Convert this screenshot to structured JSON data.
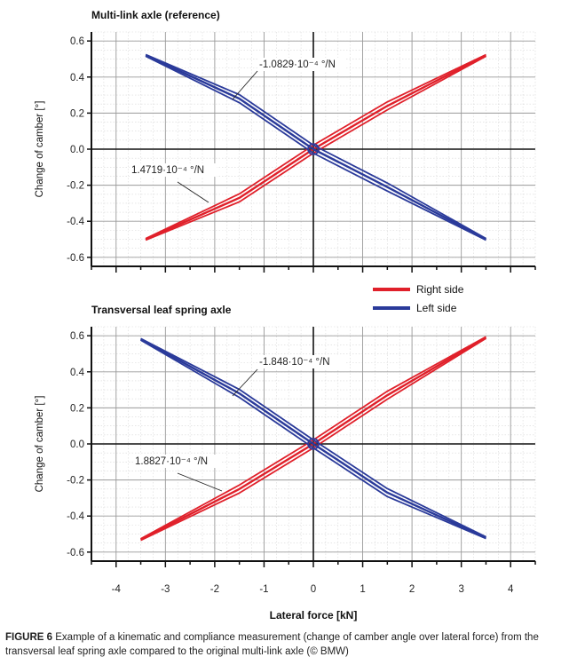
{
  "caption": {
    "label": "FIGURE 6",
    "text": "Example of a kinematic and compliance measurement (change of camber angle over lateral force) from the transversal leaf spring axle compared to the original multi-link axle (© BMW)"
  },
  "legend": {
    "items": [
      {
        "name": "Right side",
        "color": "#e0202a"
      },
      {
        "name": "Left side",
        "color": "#2a3a9a"
      }
    ]
  },
  "shared_x_axis": {
    "label": "Lateral force [kN]",
    "ticks": [
      "-4",
      "-3",
      "-2",
      "-1",
      "0",
      "1",
      "2",
      "3",
      "4"
    ]
  },
  "chart_data": [
    {
      "type": "line",
      "title": "Multi-link axle (reference)",
      "ylabel": "Change of camber [°]",
      "xlabel": "Lateral force [kN]",
      "xlim": [
        -4.5,
        4.5
      ],
      "ylim": [
        -0.65,
        0.65
      ],
      "yticks": [
        "0.6",
        "0.4",
        "0.2",
        "0.0",
        "-0.2",
        "-0.4",
        "-0.6"
      ],
      "grid": true,
      "annotations": [
        "-1.0829·10⁻⁴ °/N",
        "1.4719·10⁻⁴ °/N"
      ],
      "series": [
        {
          "name": "Right side",
          "color": "#e0202a",
          "x": [
            -3.4,
            -1.5,
            0,
            1.5,
            3.5
          ],
          "y": [
            -0.5,
            -0.27,
            0.0,
            0.24,
            0.52
          ]
        },
        {
          "name": "Left side",
          "color": "#2a3a9a",
          "x": [
            -3.4,
            -1.5,
            0,
            1.5,
            3.5
          ],
          "y": [
            0.52,
            0.28,
            0.0,
            -0.21,
            -0.5
          ]
        }
      ]
    },
    {
      "type": "line",
      "title": "Transversal leaf spring axle",
      "ylabel": "Change of camber [°]",
      "xlabel": "Lateral force [kN]",
      "xlim": [
        -4.5,
        4.5
      ],
      "ylim": [
        -0.65,
        0.65
      ],
      "yticks": [
        "0.6",
        "0.4",
        "0.2",
        "0.0",
        "-0.2",
        "-0.4",
        "-0.6"
      ],
      "grid": true,
      "annotations": [
        "-1.848·10⁻⁴ °/N",
        "1.8827·10⁻⁴ °/N"
      ],
      "series": [
        {
          "name": "Right side",
          "color": "#e0202a",
          "x": [
            -3.5,
            -1.5,
            0,
            1.5,
            3.5
          ],
          "y": [
            -0.53,
            -0.25,
            0.0,
            0.27,
            0.59
          ]
        },
        {
          "name": "Left side",
          "color": "#2a3a9a",
          "x": [
            -3.5,
            -1.5,
            0,
            1.5,
            3.5
          ],
          "y": [
            0.58,
            0.28,
            0.0,
            -0.27,
            -0.52
          ]
        }
      ]
    }
  ]
}
